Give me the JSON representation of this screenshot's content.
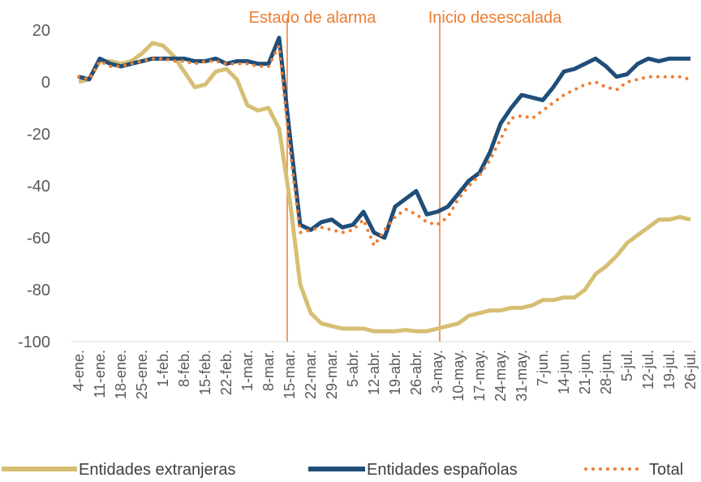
{
  "chart_data": {
    "type": "line",
    "annotations": [
      "Estado  de alarma",
      "Inicio desescalada"
    ],
    "annotation_color": "#ed7d31",
    "categories": [
      "4-ene.",
      null,
      "11-ene.",
      null,
      "18-ene.",
      null,
      "25-ene.",
      null,
      "1-feb.",
      null,
      "8-feb.",
      null,
      "15-feb.",
      null,
      "22-feb.",
      null,
      "1-mar.",
      null,
      "8-mar.",
      null,
      "15-mar.",
      null,
      "22-mar.",
      null,
      "29-mar.",
      null,
      "5-abr.",
      null,
      "12-abr.",
      null,
      "19-abr.",
      null,
      "26-abr.",
      null,
      "3-may.",
      null,
      "10-may.",
      null,
      "17-may.",
      null,
      "24-may.",
      null,
      "31-may.",
      null,
      "7-jun.",
      null,
      "14-jun.",
      null,
      "21-jun.",
      null,
      "28-jun.",
      null,
      "5-jul.",
      null,
      "12-jul.",
      null,
      "19-jul.",
      null,
      "26-jul."
    ],
    "series": [
      {
        "name": "Entidades extranjeras",
        "color": "#d6bf74",
        "style": "solid",
        "values": [
          0,
          1,
          8,
          8,
          7,
          8,
          11,
          15,
          14,
          10,
          4,
          -2,
          -1,
          4,
          5,
          1,
          -9,
          -11,
          -10,
          -18,
          -45,
          -78,
          -89,
          -93,
          -94,
          -95,
          -95,
          -95,
          -96,
          -96,
          -96,
          -95.5,
          -96,
          -96,
          -95,
          -94,
          -93,
          -90,
          -89,
          -88,
          -88,
          -87,
          -87,
          -86,
          -84,
          -84,
          -83,
          -83,
          -80,
          -74,
          -71,
          -67,
          -62,
          -59,
          -56,
          -53,
          -53,
          -52,
          -53
        ]
      },
      {
        "name": "Entidades españolas",
        "color": "#1f4e79",
        "style": "solid",
        "values": [
          2,
          1,
          9,
          7,
          6,
          7,
          8,
          9,
          9,
          9,
          9,
          8,
          8,
          9,
          7,
          8,
          8,
          7,
          7,
          17,
          -20,
          -55,
          -57,
          -54,
          -53,
          -56,
          -55,
          -50,
          -58,
          -60,
          -48,
          -45,
          -42,
          -51,
          -50,
          -48,
          -43,
          -38,
          -35,
          -27,
          -16,
          -10,
          -5,
          -6,
          -7,
          -2,
          4,
          5,
          7,
          9,
          6,
          2,
          3,
          7,
          9,
          8,
          9,
          9,
          9
        ]
      },
      {
        "name": "Total",
        "color": "#ed7d31",
        "style": "dotted",
        "values": [
          2,
          1,
          8,
          6,
          6,
          7,
          8,
          9,
          9,
          8,
          8,
          7,
          8,
          8,
          7,
          7,
          7,
          6,
          6,
          14,
          -25,
          -58,
          -57,
          -56,
          -57,
          -58,
          -57,
          -53,
          -63,
          -57,
          -52,
          -49,
          -51,
          -54,
          -55,
          -52,
          -45,
          -40,
          -36,
          -30,
          -22,
          -14,
          -13,
          -14,
          -11,
          -8,
          -5,
          -3,
          -1,
          0,
          -2,
          -3,
          0,
          1,
          2,
          2,
          2,
          2,
          1
        ]
      }
    ],
    "ylim": [
      -100,
      20
    ],
    "yticks": [
      -100,
      -80,
      -60,
      -40,
      -20,
      0,
      20
    ],
    "grid": false,
    "legend": "bottom"
  }
}
